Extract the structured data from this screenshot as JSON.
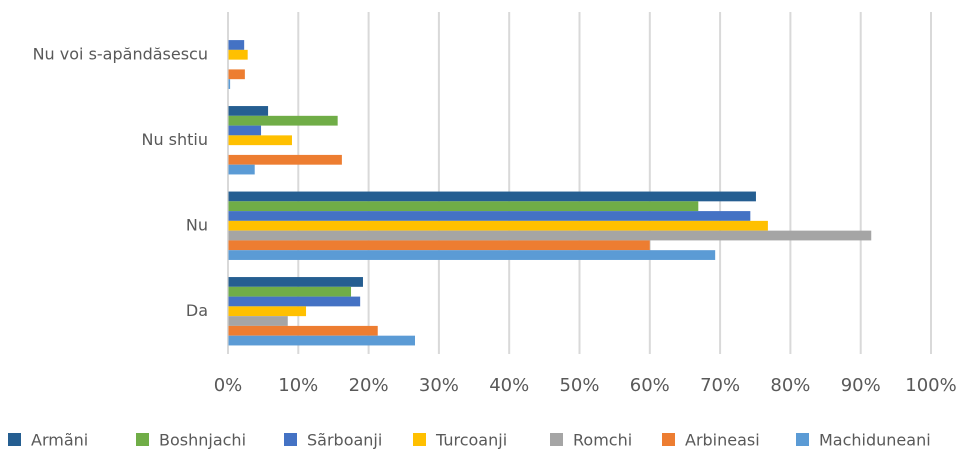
{
  "chart_data": {
    "type": "bar",
    "orientation": "horizontal",
    "categories": [
      "Nu voi s-apăndăsescu",
      "Nu shtiu",
      "Nu",
      "Da"
    ],
    "series": [
      {
        "name": "Armãni",
        "color": "#255e91",
        "values": [
          0,
          5.7,
          75.1,
          19.2
        ]
      },
      {
        "name": "Boshnjachi",
        "color": "#70ad47",
        "values": [
          0,
          15.6,
          66.9,
          17.5
        ]
      },
      {
        "name": "Sãrboanji",
        "color": "#4472c4",
        "values": [
          2.3,
          4.7,
          74.3,
          18.8
        ]
      },
      {
        "name": "Turcoanji",
        "color": "#ffc000",
        "values": [
          2.8,
          9.1,
          76.8,
          11.1
        ]
      },
      {
        "name": "Romchi",
        "color": "#a5a5a5",
        "values": [
          0,
          0,
          91.5,
          8.5
        ]
      },
      {
        "name": "Arbineasi",
        "color": "#ed7d31",
        "values": [
          2.4,
          16.2,
          60.0,
          21.3
        ]
      },
      {
        "name": "Machiduneani",
        "color": "#5b9bd5",
        "values": [
          0.3,
          3.8,
          69.3,
          26.6
        ]
      }
    ],
    "xlim": [
      0,
      100
    ],
    "xticks": [
      {
        "value": 0,
        "label": "0%"
      },
      {
        "value": 10,
        "label": "10%"
      },
      {
        "value": 20,
        "label": "20%"
      },
      {
        "value": 30,
        "label": "30%"
      },
      {
        "value": 40,
        "label": "40%"
      },
      {
        "value": 50,
        "label": "50%"
      },
      {
        "value": 60,
        "label": "60%"
      },
      {
        "value": 70,
        "label": "70%"
      },
      {
        "value": 80,
        "label": "80%"
      },
      {
        "value": 90,
        "label": "90%"
      },
      {
        "value": 100,
        "label": "100%"
      }
    ],
    "grid": true,
    "legend": "bottom"
  }
}
